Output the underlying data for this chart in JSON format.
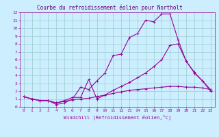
{
  "title": "Courbe du refroidissement éolien pour Northolt",
  "xlabel": "Windchill (Refroidissement éolien,°C)",
  "xlim": [
    -0.5,
    23.5
  ],
  "ylim": [
    0,
    12
  ],
  "xticks": [
    0,
    1,
    2,
    3,
    4,
    5,
    6,
    7,
    8,
    9,
    10,
    11,
    12,
    13,
    14,
    15,
    16,
    17,
    18,
    19,
    20,
    21,
    22,
    23
  ],
  "yticks": [
    0,
    1,
    2,
    3,
    4,
    5,
    6,
    7,
    8,
    9,
    10,
    11,
    12
  ],
  "bg_color": "#cceeff",
  "line_color": "#990099",
  "grid_color": "#99cccc",
  "title_color": "#660066",
  "line1_x": [
    0,
    1,
    2,
    3,
    4,
    5,
    6,
    7,
    8,
    9,
    10,
    11,
    12,
    13,
    14,
    15,
    16,
    17,
    18,
    19,
    20,
    21,
    22,
    23
  ],
  "line1_y": [
    1.3,
    1.0,
    0.8,
    0.8,
    0.3,
    0.5,
    1.0,
    2.5,
    2.2,
    3.3,
    4.3,
    6.5,
    6.7,
    8.8,
    9.3,
    11.0,
    10.8,
    11.8,
    11.8,
    8.5,
    5.8,
    4.3,
    3.3,
    2.0
  ],
  "line2_x": [
    0,
    1,
    2,
    3,
    4,
    5,
    6,
    7,
    8,
    9,
    10,
    11,
    12,
    13,
    14,
    15,
    16,
    17,
    18,
    19,
    20,
    21,
    22,
    23
  ],
  "line2_y": [
    1.3,
    1.0,
    0.8,
    0.8,
    0.5,
    0.8,
    1.2,
    1.2,
    3.5,
    1.0,
    1.5,
    2.1,
    2.6,
    3.1,
    3.7,
    4.3,
    5.1,
    6.0,
    7.8,
    8.0,
    5.8,
    4.4,
    3.3,
    2.2
  ],
  "line3_x": [
    0,
    1,
    2,
    3,
    4,
    5,
    6,
    7,
    8,
    9,
    10,
    11,
    12,
    13,
    14,
    15,
    16,
    17,
    18,
    19,
    20,
    21,
    22,
    23
  ],
  "line3_y": [
    1.3,
    1.0,
    0.8,
    0.8,
    0.5,
    0.7,
    0.9,
    1.0,
    1.1,
    1.3,
    1.5,
    1.7,
    1.9,
    2.1,
    2.2,
    2.3,
    2.4,
    2.5,
    2.6,
    2.6,
    2.5,
    2.5,
    2.4,
    2.2
  ]
}
